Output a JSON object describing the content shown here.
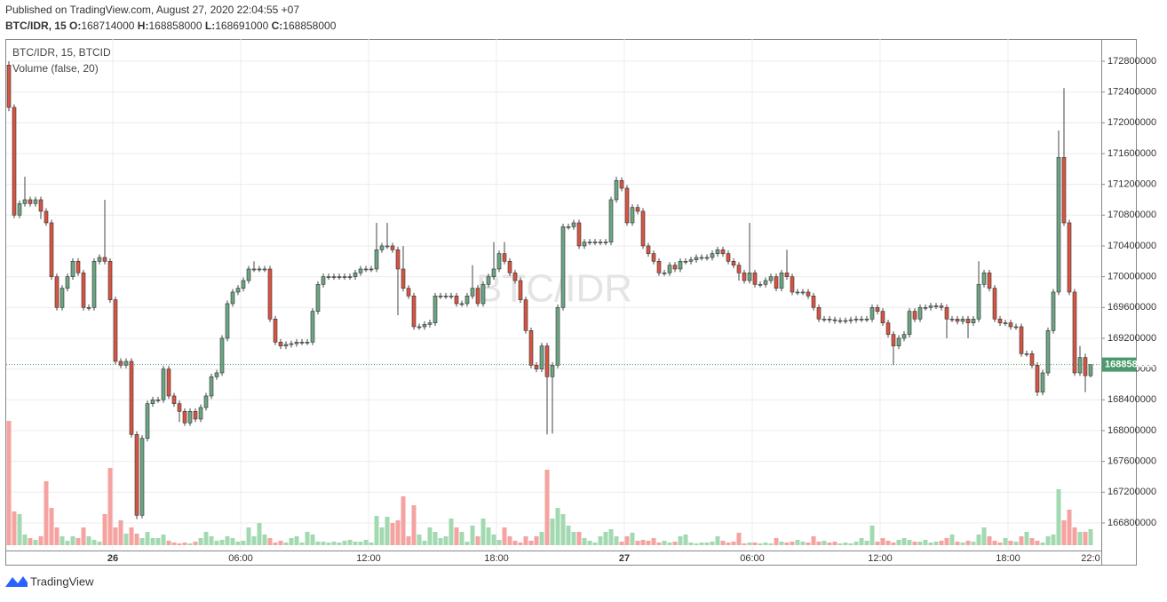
{
  "header": {
    "published": "Published on TradingView.com, August 27, 2020 22:04:55 +07",
    "symbol": "BTC/IDR, 15",
    "o_label": "O:",
    "h_label": "H:",
    "l_label": "L:",
    "c_label": "C:"
  },
  "footer": {
    "brand": "TradingView"
  },
  "chart_data": {
    "type": "candlestick",
    "legend": [
      "BTC/IDR, 15, BTCID",
      "Volume (false, 20)"
    ],
    "watermark": "BTC/IDR",
    "xtick_labels": [
      "26",
      "06:00",
      "12:00",
      "18:00",
      "27",
      "06:00",
      "12:00",
      "18:00",
      "22:0"
    ],
    "ylim": [
      166442000,
      173088000
    ],
    "yticks": [
      166800000,
      167200000,
      167600000,
      168000000,
      168400000,
      168800000,
      169200000,
      169600000,
      170000000,
      170400000,
      170800000,
      171200000,
      171600000,
      172000000,
      172400000,
      172800000
    ],
    "grid": true,
    "up_color": "#6ba583",
    "down_color": "#d75442",
    "up_volume_color": "#a3d9b1",
    "down_volume_color": "#f5a3a0",
    "last_price_color": "#4b9a6d",
    "open": [
      172750000,
      172200000,
      170800000,
      170950000,
      171000000,
      170950000,
      171000000,
      170850000,
      170700000,
      170000000,
      169600000,
      169850000,
      170000000,
      170200000,
      170050000,
      169600000,
      169600000,
      170200000,
      170250000,
      170200000,
      169700000,
      168900000,
      168850000,
      168900000,
      167950000,
      166900000,
      167900000,
      168350000,
      168400000,
      168400000,
      168800000,
      168450000,
      168350000,
      168250000,
      168100000,
      168250000,
      168150000,
      168300000,
      168450000,
      168700000,
      168750000,
      169200000,
      169650000,
      169800000,
      169850000,
      169950000,
      170100000,
      170100000,
      170100000,
      170100000,
      169450000,
      169150000,
      169100000,
      169120000,
      169130000,
      169150000,
      169150000,
      169150000,
      169550000,
      169900000,
      170000000,
      170000000,
      170000000,
      170000000,
      170000000,
      170000000,
      170050000,
      170100000,
      170100000,
      170100000,
      170350000,
      170400000,
      170400000,
      170350000,
      170100000,
      169850000,
      169750000,
      169350000,
      169350000,
      169380000,
      169400000,
      169750000,
      169750000,
      169750000,
      169750000,
      169650000,
      169650000,
      169750000,
      169850000,
      169650000,
      169900000,
      170000000,
      170100000,
      170300000,
      170200000,
      170050000,
      169950000,
      169700000,
      169300000,
      168850000,
      168800000,
      169100000,
      168700000,
      168850000,
      169600000,
      170650000,
      170650000,
      170700000,
      170400000,
      170450000,
      170450000,
      170450000,
      170450000,
      170450000,
      171000000,
      171250000,
      171150000,
      170700000,
      170900000,
      170850000,
      170400000,
      170300000,
      170200000,
      170050000,
      170050000,
      170150000,
      170100000,
      170200000,
      170200000,
      170220000,
      170250000,
      170250000,
      170250000,
      170300000,
      170350000,
      170300000,
      170200000,
      170150000,
      170050000,
      169950000,
      170050000,
      169900000,
      169900000,
      169950000,
      170000000,
      169850000,
      170050000,
      170000000,
      169800000,
      169800000,
      169800000,
      169750000,
      169600000,
      169450000,
      169450000,
      169440000,
      169430000,
      169430000,
      169430000,
      169440000,
      169450000,
      169450000,
      169450000,
      169600000,
      169550000,
      169400000,
      169250000,
      169100000,
      169200000,
      169250000,
      169550000,
      169450000,
      169600000,
      169600000,
      169620000,
      169620000,
      169600000,
      169450000,
      169450000,
      169420000,
      169450000,
      169400000,
      169450000,
      169900000,
      170050000,
      169850000,
      169450000,
      169400000,
      169400000,
      169350000,
      169350000,
      169000000,
      169000000,
      168850000,
      168500000,
      168750000,
      169300000,
      169800000,
      171550000,
      170700000,
      169800000,
      168750000,
      168950000,
      168714000
    ],
    "high": [
      172800000,
      172240000,
      170990000,
      171300000,
      171040000,
      171040000,
      171040000,
      170890000,
      170740000,
      170040000,
      169890000,
      170040000,
      170240000,
      170240000,
      170090000,
      169640000,
      170240000,
      170290000,
      171000000,
      170240000,
      169740000,
      168940000,
      168940000,
      168940000,
      167990000,
      167940000,
      168390000,
      168440000,
      168440000,
      168840000,
      168840000,
      168490000,
      168390000,
      168290000,
      168290000,
      168290000,
      168340000,
      168490000,
      168740000,
      168790000,
      169240000,
      169690000,
      169840000,
      169890000,
      169990000,
      170140000,
      170200000,
      170140000,
      170140000,
      170140000,
      169490000,
      169190000,
      169160000,
      169170000,
      169190000,
      169190000,
      169190000,
      169590000,
      169940000,
      170040000,
      170040000,
      170040000,
      170040000,
      170040000,
      170040000,
      170090000,
      170140000,
      170140000,
      170140000,
      170700000,
      170440000,
      170700000,
      170440000,
      170390000,
      170400000,
      169890000,
      169790000,
      169390000,
      169420000,
      169440000,
      169790000,
      169790000,
      169790000,
      169790000,
      169790000,
      169690000,
      169790000,
      170150000,
      169890000,
      169940000,
      170040000,
      170450000,
      170340000,
      170450000,
      170240000,
      170090000,
      169990000,
      169740000,
      169340000,
      168890000,
      169140000,
      169140000,
      168890000,
      169640000,
      170690000,
      170690000,
      170740000,
      170740000,
      170490000,
      170490000,
      170490000,
      170490000,
      170490000,
      171040000,
      171300000,
      171290000,
      171190000,
      170940000,
      170940000,
      170890000,
      170440000,
      170340000,
      170240000,
      170090000,
      170190000,
      170190000,
      170240000,
      170240000,
      170260000,
      170290000,
      170290000,
      170290000,
      170340000,
      170390000,
      170390000,
      170340000,
      170240000,
      170190000,
      170090000,
      170700000,
      170090000,
      169940000,
      169990000,
      170040000,
      170040000,
      170090000,
      170350000,
      170040000,
      169840000,
      169840000,
      169840000,
      169790000,
      169640000,
      169490000,
      169490000,
      169480000,
      169470000,
      169470000,
      169480000,
      169490000,
      169490000,
      169490000,
      169640000,
      169640000,
      169590000,
      169440000,
      169290000,
      169240000,
      169290000,
      169590000,
      169590000,
      169640000,
      169640000,
      169660000,
      169660000,
      169660000,
      169640000,
      169490000,
      169490000,
      169490000,
      169490000,
      169490000,
      170200000,
      170090000,
      170090000,
      169890000,
      169490000,
      169440000,
      169440000,
      169390000,
      169390000,
      169040000,
      169040000,
      168890000,
      168790000,
      169340000,
      169840000,
      171900000,
      172450000,
      170740000,
      169840000,
      169100000,
      169000000,
      168858000
    ],
    "low": [
      172150000,
      170760000,
      170760000,
      170910000,
      170910000,
      170910000,
      170750000,
      170660000,
      169960000,
      169560000,
      169560000,
      169810000,
      169960000,
      170010000,
      169560000,
      169560000,
      169560000,
      170160000,
      170160000,
      169660000,
      168860000,
      168810000,
      168810000,
      167910000,
      166850000,
      166860000,
      167860000,
      168310000,
      168360000,
      168360000,
      168410000,
      168310000,
      168110000,
      168060000,
      168060000,
      168110000,
      168110000,
      168260000,
      168410000,
      168660000,
      168710000,
      169160000,
      169610000,
      169760000,
      169810000,
      169910000,
      170060000,
      170060000,
      170060000,
      169410000,
      169110000,
      169060000,
      169060000,
      169080000,
      169090000,
      169110000,
      169110000,
      169110000,
      169510000,
      169860000,
      169960000,
      169960000,
      169960000,
      169960000,
      169960000,
      169960000,
      170010000,
      170060000,
      170060000,
      170060000,
      170310000,
      170360000,
      170310000,
      169500000,
      169810000,
      169710000,
      169310000,
      169310000,
      169310000,
      169340000,
      169360000,
      169710000,
      169710000,
      169710000,
      169610000,
      169610000,
      169610000,
      169710000,
      169610000,
      169610000,
      169860000,
      169960000,
      170060000,
      170160000,
      170010000,
      169910000,
      169660000,
      169260000,
      168810000,
      168760000,
      168760000,
      167950000,
      167960000,
      168810000,
      169560000,
      170610000,
      170610000,
      170360000,
      170360000,
      170410000,
      170410000,
      170410000,
      170410000,
      170410000,
      170960000,
      171110000,
      170660000,
      170660000,
      170810000,
      170360000,
      170260000,
      170160000,
      170010000,
      170010000,
      170010000,
      170060000,
      170060000,
      170160000,
      170160000,
      170180000,
      170210000,
      170210000,
      170210000,
      170260000,
      170260000,
      170160000,
      170110000,
      169950000,
      169910000,
      169910000,
      169860000,
      169860000,
      169860000,
      169910000,
      169810000,
      169810000,
      169960000,
      169760000,
      169760000,
      169760000,
      169710000,
      169560000,
      169410000,
      169410000,
      169400000,
      169390000,
      169390000,
      169390000,
      169390000,
      169400000,
      169410000,
      169410000,
      169410000,
      169510000,
      169360000,
      169210000,
      168850000,
      169060000,
      169160000,
      169210000,
      169410000,
      169410000,
      169560000,
      169560000,
      169580000,
      169560000,
      169200000,
      169410000,
      169380000,
      169380000,
      169200000,
      169360000,
      169410000,
      169860000,
      169810000,
      169410000,
      169360000,
      169360000,
      169310000,
      169310000,
      168960000,
      168960000,
      168810000,
      168450000,
      168460000,
      168710000,
      169260000,
      169760000,
      170660000,
      169760000,
      168710000,
      168710000,
      168500000,
      168691000
    ],
    "close": [
      172200000,
      170800000,
      170950000,
      171000000,
      170950000,
      171000000,
      170850000,
      170700000,
      170000000,
      169600000,
      169850000,
      170000000,
      170200000,
      170050000,
      169600000,
      169600000,
      170200000,
      170250000,
      170200000,
      169700000,
      168900000,
      168850000,
      168900000,
      167950000,
      166900000,
      167900000,
      168350000,
      168400000,
      168400000,
      168800000,
      168450000,
      168350000,
      168250000,
      168100000,
      168250000,
      168150000,
      168300000,
      168450000,
      168700000,
      168750000,
      169200000,
      169650000,
      169800000,
      169850000,
      169950000,
      170100000,
      170100000,
      170100000,
      170100000,
      169450000,
      169150000,
      169100000,
      169120000,
      169130000,
      169150000,
      169150000,
      169150000,
      169550000,
      169900000,
      170000000,
      170000000,
      170000000,
      170000000,
      170000000,
      170000000,
      170050000,
      170100000,
      170100000,
      170100000,
      170350000,
      170400000,
      170400000,
      170350000,
      170100000,
      169850000,
      169750000,
      169350000,
      169350000,
      169380000,
      169400000,
      169750000,
      169750000,
      169750000,
      169750000,
      169650000,
      169650000,
      169750000,
      169850000,
      169650000,
      169900000,
      170000000,
      170100000,
      170300000,
      170200000,
      170050000,
      169950000,
      169700000,
      169300000,
      168850000,
      168800000,
      169100000,
      168700000,
      168850000,
      169600000,
      170650000,
      170650000,
      170700000,
      170400000,
      170450000,
      170450000,
      170450000,
      170450000,
      170450000,
      171000000,
      171250000,
      171150000,
      170700000,
      170900000,
      170850000,
      170400000,
      170300000,
      170200000,
      170050000,
      170050000,
      170150000,
      170100000,
      170200000,
      170200000,
      170220000,
      170250000,
      170250000,
      170250000,
      170300000,
      170350000,
      170300000,
      170200000,
      170150000,
      170050000,
      169950000,
      170050000,
      169900000,
      169900000,
      169950000,
      170000000,
      169850000,
      170050000,
      170000000,
      169800000,
      169800000,
      169800000,
      169750000,
      169600000,
      169450000,
      169450000,
      169440000,
      169430000,
      169430000,
      169430000,
      169440000,
      169450000,
      169450000,
      169450000,
      169600000,
      169550000,
      169400000,
      169250000,
      169100000,
      169200000,
      169250000,
      169550000,
      169450000,
      169600000,
      169600000,
      169620000,
      169620000,
      169600000,
      169450000,
      169450000,
      169420000,
      169450000,
      169400000,
      169450000,
      169900000,
      170050000,
      169850000,
      169450000,
      169400000,
      169400000,
      169350000,
      169350000,
      169000000,
      169000000,
      168850000,
      168500000,
      168750000,
      169300000,
      169800000,
      171550000,
      170700000,
      169800000,
      168750000,
      168950000,
      168714000,
      168858000
    ],
    "volume": [
      140,
      38,
      35,
      12,
      8,
      6,
      10,
      72,
      42,
      20,
      10,
      5,
      10,
      8,
      20,
      10,
      6,
      4,
      35,
      87,
      20,
      28,
      13,
      20,
      13,
      8,
      15,
      8,
      8,
      12,
      5,
      3,
      2,
      3,
      2,
      4,
      8,
      15,
      10,
      5,
      6,
      10,
      8,
      4,
      5,
      20,
      10,
      25,
      12,
      8,
      3,
      5,
      3,
      8,
      10,
      3,
      15,
      12,
      4,
      4,
      3,
      4,
      3,
      5,
      6,
      4,
      4,
      6,
      3,
      33,
      20,
      32,
      25,
      28,
      55,
      10,
      45,
      12,
      5,
      20,
      15,
      8,
      10,
      30,
      20,
      15,
      4,
      22,
      10,
      30,
      20,
      12,
      6,
      20,
      10,
      5,
      3,
      10,
      5,
      10,
      15,
      85,
      30,
      42,
      35,
      22,
      15,
      15,
      8,
      5,
      3,
      10,
      15,
      18,
      10,
      4,
      10,
      14,
      5,
      6,
      5,
      8,
      3,
      5,
      3,
      4,
      10,
      12,
      3,
      2,
      3,
      3,
      4,
      10,
      5,
      3,
      4,
      14,
      2,
      3,
      3,
      2,
      3,
      2,
      8,
      4,
      3,
      4,
      6,
      4,
      3,
      10,
      4,
      5,
      3,
      4,
      2,
      3,
      2,
      4,
      8,
      5,
      22,
      4,
      8,
      5,
      3,
      6,
      8,
      6,
      4,
      4,
      6,
      3,
      4,
      5,
      8,
      12,
      4,
      3,
      5,
      4,
      12,
      20,
      10,
      5,
      3,
      8,
      5,
      4,
      10,
      15,
      8,
      5,
      3,
      10,
      12,
      63,
      28,
      40,
      20,
      15,
      15,
      18
    ]
  }
}
